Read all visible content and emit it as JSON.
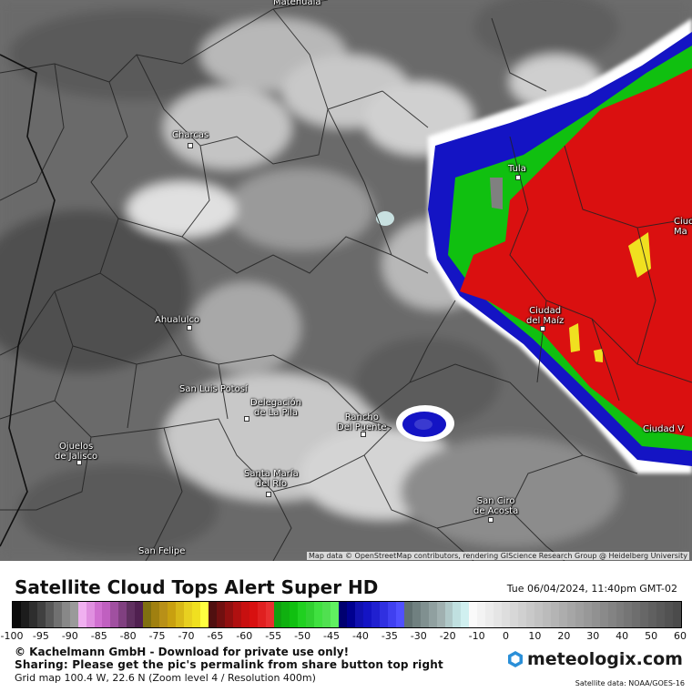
{
  "map": {
    "places": [
      {
        "name": "Matehuala"
      },
      {
        "name": "Charcas"
      },
      {
        "name": "Tula"
      },
      {
        "name": "Ciudad\nMa"
      },
      {
        "name": "Ahualulco"
      },
      {
        "name": "Ciudad\ndel Maíz"
      },
      {
        "name": "San Luis Potosí"
      },
      {
        "name": "Delegación\nde La Pila"
      },
      {
        "name": "Rancho\nDel Puente"
      },
      {
        "name": "Ciudad V"
      },
      {
        "name": "Ojuelos\nde Jalisco"
      },
      {
        "name": "Santa María\ndel Río"
      },
      {
        "name": "San Ciro\nde Acosta"
      },
      {
        "name": "San Felipe"
      }
    ],
    "attribution": "Map data © OpenStreetMap contributors, rendering GIScience Research Group @ Heidelberg University"
  },
  "legend": {
    "title": "Satellite Cloud Tops Alert Super HD",
    "datetime": "Tue 06/04/2024, 11:40pm GMT-02",
    "ticks": [
      "-100",
      "-95",
      "-90",
      "-85",
      "-80",
      "-75",
      "-70",
      "-65",
      "-60",
      "-55",
      "-50",
      "-45",
      "-40",
      "-35",
      "-30",
      "-20",
      "-10",
      "0",
      "10",
      "20",
      "30",
      "40",
      "50",
      "60"
    ],
    "colors": {
      "very_cold_black": "#111111",
      "magenta": "#c060c0",
      "gold": "#c8a010",
      "yellow": "#f0e020",
      "red": "#d81010",
      "green": "#10c010",
      "blue": "#1010c0",
      "cyan_gray": "#a0c0c0",
      "white": "#ffffff",
      "gray": "#707070"
    }
  },
  "footer": {
    "copyright": "© Kachelmann GmbH - Download for private use only!",
    "sharing": "Sharing: Please get the pic's permalink from share button top right",
    "grid": "Grid map 100.4 W, 22.6 N (Zoom level 4 / Resolution 400m)",
    "brand": "meteologix.com",
    "satellite": "Satellite data: NOAA/GOES-16"
  }
}
